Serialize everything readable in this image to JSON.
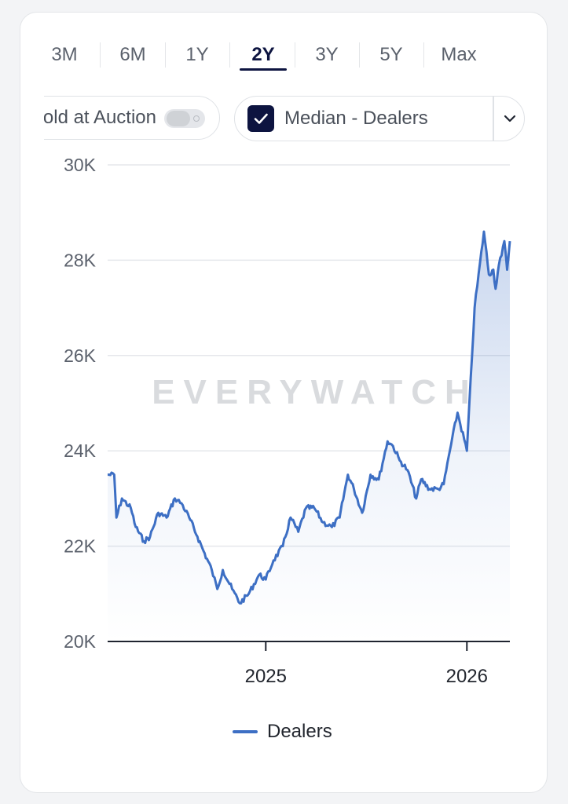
{
  "range_tabs": {
    "items": [
      "3M",
      "6M",
      "1Y",
      "2Y",
      "3Y",
      "5Y",
      "Max"
    ],
    "active": "2Y"
  },
  "auction_toggle": {
    "label": "Sold at Auction",
    "visible_label": "old at Auction",
    "checked": false
  },
  "series_select": {
    "label": "Median - Dealers",
    "checked": true
  },
  "watermark": "EVERYWATCH",
  "colors": {
    "accent": "#0d1440",
    "line": "#3d6fc4",
    "grid": "#e5e7eb"
  },
  "legend": {
    "label": "Dealers"
  },
  "chart_data": {
    "type": "area",
    "title": "",
    "xlabel": "",
    "ylabel": "",
    "x_ticks": [
      "2025",
      "2026"
    ],
    "y_ticks": [
      "20K",
      "22K",
      "24K",
      "26K",
      "28K",
      "30K"
    ],
    "ylim": [
      20000,
      30000
    ],
    "xlim": [
      "2024-03-20",
      "2026-03-20"
    ],
    "grid": "horizontal",
    "legend_position": "bottom",
    "series": [
      {
        "name": "Dealers",
        "x": [
          "2024-03-20",
          "2024-04-01",
          "2024-04-05",
          "2024-04-15",
          "2024-05-01",
          "2024-05-10",
          "2024-05-25",
          "2024-06-05",
          "2024-06-20",
          "2024-07-05",
          "2024-07-20",
          "2024-08-01",
          "2024-08-15",
          "2024-08-30",
          "2024-09-10",
          "2024-09-25",
          "2024-10-05",
          "2024-10-15",
          "2024-11-01",
          "2024-11-15",
          "2024-12-01",
          "2024-12-20",
          "2025-01-01",
          "2025-01-15",
          "2025-02-01",
          "2025-02-15",
          "2025-03-01",
          "2025-03-15",
          "2025-03-30",
          "2025-04-15",
          "2025-05-01",
          "2025-05-15",
          "2025-05-30",
          "2025-06-10",
          "2025-06-25",
          "2025-07-10",
          "2025-07-25",
          "2025-08-10",
          "2025-08-20",
          "2025-09-01",
          "2025-09-15",
          "2025-10-01",
          "2025-10-10",
          "2025-10-25",
          "2025-11-10",
          "2025-11-20",
          "2025-12-01",
          "2025-12-15",
          "2026-01-01",
          "2026-01-15",
          "2026-02-01",
          "2026-02-10",
          "2026-02-18",
          "2026-02-22",
          "2026-02-28",
          "2026-03-05",
          "2026-03-10",
          "2026-03-15",
          "2026-03-20"
        ],
        "values": [
          23500,
          23500,
          22600,
          23000,
          22800,
          22400,
          22100,
          22200,
          22700,
          22600,
          23000,
          22900,
          22600,
          22200,
          21900,
          21500,
          21100,
          21500,
          21100,
          20800,
          21000,
          21400,
          21300,
          21700,
          22000,
          22600,
          22300,
          22800,
          22800,
          22500,
          22400,
          22600,
          23500,
          23200,
          22700,
          23500,
          23400,
          24200,
          24100,
          23800,
          23600,
          23000,
          23400,
          23200,
          23200,
          23300,
          24000,
          24800,
          24000,
          27000,
          28600,
          27700,
          27800,
          27400,
          27900,
          28100,
          28400,
          27800,
          28400
        ]
      }
    ]
  }
}
